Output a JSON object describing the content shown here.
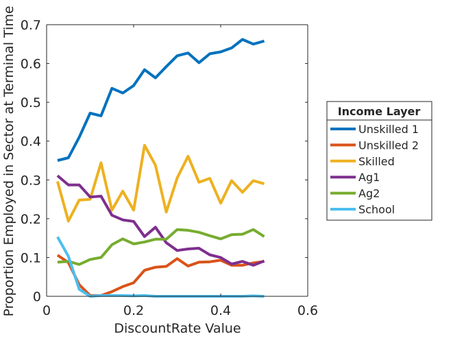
{
  "chart_data": {
    "type": "line",
    "title": "",
    "xlabel": "DiscountRate Value",
    "ylabel": "Proportion Employed in Sector at Terminal Time",
    "xlim": [
      0,
      0.6
    ],
    "ylim": [
      0,
      0.7
    ],
    "xticks": [
      0,
      0.2,
      0.4,
      0.6
    ],
    "xtick_labels": [
      "0",
      "0.2",
      "0.4",
      "0.6"
    ],
    "yticks": [
      0,
      0.1,
      0.2,
      0.3,
      0.4,
      0.5,
      0.6,
      0.7
    ],
    "ytick_labels": [
      "0",
      "0.1",
      "0.2",
      "0.3",
      "0.4",
      "0.5",
      "0.6",
      "0.7"
    ],
    "grid": false,
    "legend": {
      "title": "Income Layer",
      "placement": "outside-right"
    },
    "x": [
      0.025,
      0.05,
      0.075,
      0.1,
      0.125,
      0.15,
      0.175,
      0.2,
      0.225,
      0.25,
      0.275,
      0.3,
      0.325,
      0.35,
      0.375,
      0.4,
      0.425,
      0.45,
      0.475,
      0.5
    ],
    "series": [
      {
        "name": "Unskilled 1",
        "color": "#0072BD",
        "values": [
          0.35,
          0.357,
          0.41,
          0.472,
          0.465,
          0.536,
          0.524,
          0.543,
          0.584,
          0.563,
          0.592,
          0.62,
          0.627,
          0.602,
          0.625,
          0.63,
          0.64,
          0.662,
          0.65,
          0.658
        ]
      },
      {
        "name": "Unskilled 2",
        "color": "#D95319",
        "values": [
          0.106,
          0.087,
          0.03,
          0.002,
          0.002,
          0.012,
          0.025,
          0.035,
          0.067,
          0.075,
          0.077,
          0.097,
          0.078,
          0.088,
          0.089,
          0.093,
          0.08,
          0.08,
          0.086,
          0.09
        ]
      },
      {
        "name": "Skilled",
        "color": "#EDB120",
        "values": [
          0.296,
          0.194,
          0.248,
          0.25,
          0.344,
          0.222,
          0.271,
          0.222,
          0.389,
          0.338,
          0.217,
          0.305,
          0.361,
          0.294,
          0.304,
          0.24,
          0.298,
          0.268,
          0.298,
          0.29
        ]
      },
      {
        "name": "Ag1",
        "color": "#7E2F8E",
        "values": [
          0.311,
          0.287,
          0.287,
          0.256,
          0.258,
          0.209,
          0.197,
          0.193,
          0.154,
          0.178,
          0.138,
          0.118,
          0.122,
          0.124,
          0.107,
          0.1,
          0.083,
          0.09,
          0.08,
          0.091
        ]
      },
      {
        "name": "Ag2",
        "color": "#77AC30",
        "values": [
          0.088,
          0.09,
          0.082,
          0.095,
          0.1,
          0.133,
          0.148,
          0.135,
          0.14,
          0.147,
          0.147,
          0.172,
          0.17,
          0.165,
          0.156,
          0.148,
          0.159,
          0.16,
          0.172,
          0.154
        ]
      },
      {
        "name": "School",
        "color": "#4DBEEE",
        "values": [
          0.153,
          0.103,
          0.018,
          0.0,
          0.002,
          0.002,
          0.002,
          0.001,
          0.002,
          0.0,
          0.0,
          0.0,
          0.0,
          0.0,
          0.0,
          0.0,
          0.0,
          0.0,
          0.001,
          0.0
        ]
      }
    ]
  }
}
